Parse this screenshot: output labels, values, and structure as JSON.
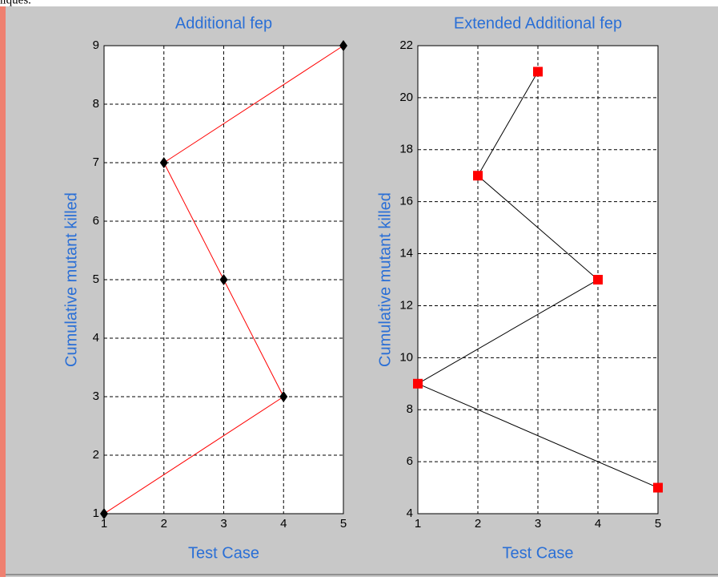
{
  "caption_fragment": "niques.",
  "chart_data": [
    {
      "type": "line",
      "title": "Additional fep",
      "x_label": "Test Case",
      "y_label": "Cumulative mutant killed",
      "series": [
        {
          "x": [
            1,
            4,
            3,
            2,
            5
          ],
          "values": [
            1,
            3,
            5,
            7,
            9
          ],
          "color": "#ff0000",
          "marker": "diamond",
          "marker_color": "#000000"
        }
      ],
      "xlim": [
        1,
        5
      ],
      "xticks": [
        1,
        2,
        3,
        4,
        5
      ],
      "ylim": [
        1,
        9
      ],
      "yticks": [
        1,
        2,
        3,
        4,
        5,
        6,
        7,
        8,
        9
      ],
      "grid": true
    },
    {
      "type": "line",
      "title": "Extended Additional fep",
      "x_label": "Test Case",
      "y_label": "Cumulative mutant killed",
      "series": [
        {
          "x": [
            3,
            2,
            4,
            1,
            5
          ],
          "values": [
            21,
            17,
            13,
            9,
            5
          ],
          "color": "#000000",
          "marker": "square",
          "marker_color": "#ff0000"
        }
      ],
      "xlim": [
        1,
        5
      ],
      "xticks": [
        1,
        2,
        3,
        4,
        5
      ],
      "ylim": [
        4,
        22
      ],
      "yticks": [
        4,
        6,
        8,
        10,
        12,
        14,
        16,
        18,
        20,
        22
      ],
      "grid": true
    }
  ]
}
